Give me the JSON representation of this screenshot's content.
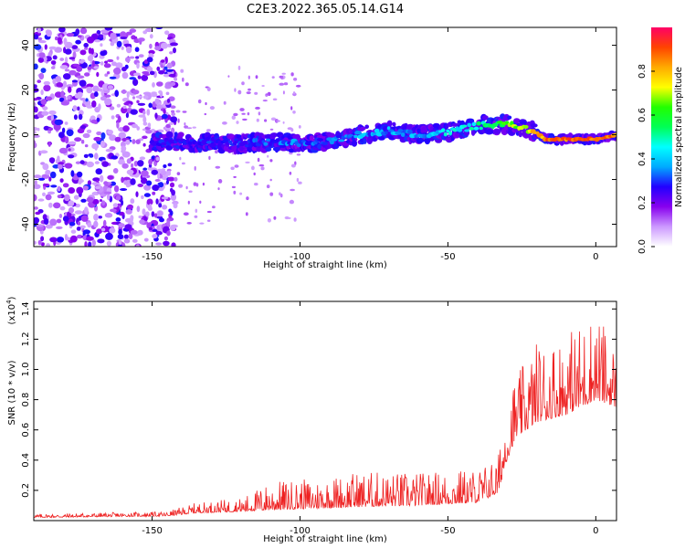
{
  "chart_data": [
    {
      "type": "heatmap",
      "title": "C2E3.2022.365.05.14.G14",
      "xlabel": "Height of straight line (km)",
      "ylabel": "Frequency (Hz)",
      "xlim": [
        -190,
        7
      ],
      "ylim": [
        -50,
        48
      ],
      "xticks": [
        -150,
        -100,
        -50,
        0
      ],
      "yticks": [
        -40,
        -20,
        0,
        20,
        40
      ],
      "colorbar": {
        "label": "Normalized spectral amplitude",
        "range": [
          0,
          1
        ],
        "ticks": [
          0.0,
          0.2,
          0.4,
          0.6,
          0.8
        ],
        "colormap": [
          "#ffffff",
          "#cc99ff",
          "#8800ee",
          "#2200ff",
          "#00aaff",
          "#00ffff",
          "#00ff55",
          "#22ff00",
          "#ffff00",
          "#ffaa00",
          "#ff4400",
          "#ff0066"
        ]
      },
      "ridge": [
        {
          "x": -190,
          "f": -2
        },
        {
          "x": -150,
          "f": -3
        },
        {
          "x": -120,
          "f": -4
        },
        {
          "x": -110,
          "f": -3
        },
        {
          "x": -100,
          "f": -4
        },
        {
          "x": -90,
          "f": -3
        },
        {
          "x": -80,
          "f": 0
        },
        {
          "x": -70,
          "f": 2
        },
        {
          "x": -60,
          "f": 0
        },
        {
          "x": -50,
          "f": 1
        },
        {
          "x": -40,
          "f": 4
        },
        {
          "x": -30,
          "f": 5
        },
        {
          "x": -25,
          "f": 3
        },
        {
          "x": -20,
          "f": 1
        },
        {
          "x": -17,
          "f": -2
        },
        {
          "x": -10,
          "f": -2
        },
        {
          "x": 0,
          "f": -2
        },
        {
          "x": 7,
          "f": 0
        }
      ],
      "ridge_amplitude": [
        {
          "x": -150,
          "a": 0.3
        },
        {
          "x": -100,
          "a": 0.38
        },
        {
          "x": -80,
          "a": 0.42
        },
        {
          "x": -60,
          "a": 0.45
        },
        {
          "x": -40,
          "a": 0.55
        },
        {
          "x": -30,
          "a": 0.72
        },
        {
          "x": -20,
          "a": 0.85
        },
        {
          "x": -17,
          "a": 0.95
        },
        {
          "x": 0,
          "a": 0.98
        },
        {
          "x": 7,
          "a": 0.9
        }
      ],
      "noise_region_x": [
        -190,
        -145
      ]
    },
    {
      "type": "line",
      "xlabel": "Height of straight line (km)",
      "ylabel": "SNR (10 * v/v)",
      "yunit": "(x10",
      "yunit_exp": "4",
      "yunit_close": ")",
      "xlim": [
        -190,
        7
      ],
      "ylim": [
        0,
        14500
      ],
      "xticks": [
        -150,
        -100,
        -50,
        0
      ],
      "yticks": [
        0.2,
        0.4,
        0.6,
        0.8,
        1.0,
        1.2,
        1.4
      ],
      "color": "#ee2222",
      "envelope": [
        {
          "x": -190,
          "base": 200,
          "amp": 250
        },
        {
          "x": -145,
          "base": 300,
          "amp": 300
        },
        {
          "x": -135,
          "base": 500,
          "amp": 700
        },
        {
          "x": -120,
          "base": 600,
          "amp": 900
        },
        {
          "x": -110,
          "base": 700,
          "amp": 1900
        },
        {
          "x": -95,
          "base": 800,
          "amp": 2000
        },
        {
          "x": -80,
          "base": 900,
          "amp": 2400
        },
        {
          "x": -60,
          "base": 1000,
          "amp": 2200
        },
        {
          "x": -40,
          "base": 1200,
          "amp": 2300
        },
        {
          "x": -33,
          "base": 1800,
          "amp": 2500
        },
        {
          "x": -30,
          "base": 4000,
          "amp": 5000
        },
        {
          "x": -27,
          "base": 5500,
          "amp": 4000
        },
        {
          "x": -20,
          "base": 6500,
          "amp": 5500
        },
        {
          "x": -10,
          "base": 7000,
          "amp": 5500
        },
        {
          "x": 0,
          "base": 8000,
          "amp": 6000
        },
        {
          "x": 7,
          "base": 7500,
          "amp": 4000
        }
      ]
    }
  ]
}
